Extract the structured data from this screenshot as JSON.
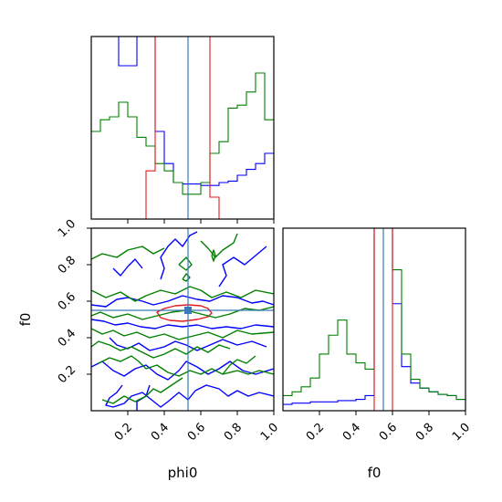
{
  "chart_data": {
    "type": "corner",
    "parameters": [
      "phi0",
      "f0"
    ],
    "truth": {
      "phi0": 0.53,
      "f0": 0.55
    },
    "colors": {
      "truth": "#3a7ab8",
      "red": "#e31a1c",
      "blue": "#0000ff",
      "green": "#008000"
    },
    "ticks": [
      0.2,
      0.4,
      0.6,
      0.8,
      1.0
    ],
    "tick_labels": [
      "0.2",
      "0.4",
      "0.6",
      "0.8",
      "1.0"
    ],
    "hist_phi0": {
      "bin_edges": [
        0,
        0.05,
        0.1,
        0.15,
        0.2,
        0.25,
        0.3,
        0.35,
        0.4,
        0.45,
        0.5,
        0.55,
        0.6,
        0.65,
        0.7,
        0.75,
        0.8,
        0.85,
        0.9,
        0.95,
        1.0
      ],
      "series": [
        {
          "color": "blue",
          "values": [
            1.4,
            1.4,
            1.4,
            1.05,
            1.05,
            1.4,
            1.4,
            0.6,
            0.38,
            0.25,
            0.24,
            0.24,
            0.23,
            0.23,
            0.25,
            0.26,
            0.3,
            0.34,
            0.38,
            0.45
          ]
        },
        {
          "color": "green",
          "values": [
            0.6,
            0.68,
            0.7,
            0.8,
            0.7,
            0.56,
            0.5,
            0.38,
            0.33,
            0.25,
            0.17,
            0.17,
            0.25,
            0.45,
            0.53,
            0.76,
            0.78,
            0.87,
            1.0,
            0.68
          ]
        },
        {
          "color": "red",
          "values": [
            0,
            0,
            0,
            0,
            0,
            0,
            0.33,
            1.4,
            1.4,
            1.4,
            1.4,
            1.4,
            1.4,
            0.15,
            0,
            0,
            0,
            0,
            0,
            0
          ]
        }
      ]
    },
    "hist_f0": {
      "bin_edges": [
        0,
        0.05,
        0.1,
        0.15,
        0.2,
        0.25,
        0.3,
        0.35,
        0.4,
        0.45,
        0.5,
        0.55,
        0.6,
        0.65,
        0.7,
        0.75,
        0.8,
        0.85,
        0.9,
        0.95,
        1.0
      ],
      "series": [
        {
          "color": "blue",
          "values": [
            0.05,
            0.06,
            0.06,
            0.07,
            0.07,
            0.07,
            0.08,
            0.08,
            0.09,
            0.12,
            1.5,
            1.5,
            0.85,
            0.35,
            0.22,
            0.18,
            0.15,
            0.13,
            0.12,
            0.09
          ]
        },
        {
          "color": "green",
          "values": [
            0.12,
            0.15,
            0.19,
            0.26,
            0.45,
            0.6,
            0.72,
            0.45,
            0.38,
            0.33,
            1.5,
            1.5,
            1.12,
            0.45,
            0.25,
            0.18,
            0.15,
            0.13,
            0.12,
            0.09
          ]
        },
        {
          "color": "red",
          "values": [
            0,
            0,
            0,
            0,
            0,
            0,
            0,
            0,
            0,
            0,
            1.5,
            1.5,
            0,
            0,
            0,
            0,
            0,
            0,
            0,
            0
          ]
        }
      ]
    },
    "contours": [
      {
        "color": "red",
        "closed": true,
        "points": [
          [
            0.36,
            0.54
          ],
          [
            0.4,
            0.56
          ],
          [
            0.46,
            0.575
          ],
          [
            0.53,
            0.58
          ],
          [
            0.6,
            0.575
          ],
          [
            0.64,
            0.56
          ],
          [
            0.66,
            0.535
          ],
          [
            0.64,
            0.515
          ],
          [
            0.58,
            0.5
          ],
          [
            0.5,
            0.49
          ],
          [
            0.43,
            0.495
          ],
          [
            0.38,
            0.51
          ]
        ]
      },
      {
        "color": "blue",
        "closed": false,
        "points": [
          [
            0.0,
            0.58
          ],
          [
            0.08,
            0.57
          ],
          [
            0.14,
            0.61
          ],
          [
            0.2,
            0.62
          ],
          [
            0.28,
            0.6
          ],
          [
            0.34,
            0.58
          ],
          [
            0.42,
            0.6
          ],
          [
            0.5,
            0.63
          ],
          [
            0.58,
            0.61
          ],
          [
            0.65,
            0.6
          ],
          [
            0.72,
            0.63
          ],
          [
            0.8,
            0.62
          ],
          [
            0.88,
            0.59
          ],
          [
            0.94,
            0.6
          ],
          [
            1.0,
            0.58
          ]
        ]
      },
      {
        "color": "blue",
        "closed": false,
        "points": [
          [
            0.0,
            0.5
          ],
          [
            0.07,
            0.49
          ],
          [
            0.13,
            0.47
          ],
          [
            0.2,
            0.48
          ],
          [
            0.27,
            0.46
          ],
          [
            0.35,
            0.45
          ],
          [
            0.42,
            0.47
          ],
          [
            0.5,
            0.46
          ],
          [
            0.58,
            0.47
          ],
          [
            0.66,
            0.45
          ],
          [
            0.74,
            0.46
          ],
          [
            0.82,
            0.45
          ],
          [
            0.9,
            0.47
          ],
          [
            1.0,
            0.46
          ]
        ]
      },
      {
        "color": "blue",
        "closed": false,
        "points": [
          [
            0.17,
            0.14
          ],
          [
            0.14,
            0.1
          ],
          [
            0.1,
            0.07
          ],
          [
            0.08,
            0.03
          ],
          [
            0.12,
            0.02
          ],
          [
            0.18,
            0.04
          ],
          [
            0.22,
            0.08
          ],
          [
            0.28,
            0.1
          ],
          [
            0.33,
            0.06
          ],
          [
            0.38,
            0.02
          ],
          [
            0.42,
            0.05
          ],
          [
            0.48,
            0.1
          ],
          [
            0.53,
            0.06
          ],
          [
            0.57,
            0.11
          ],
          [
            0.63,
            0.14
          ],
          [
            0.7,
            0.12
          ],
          [
            0.75,
            0.08
          ],
          [
            0.8,
            0.11
          ],
          [
            0.86,
            0.08
          ],
          [
            0.92,
            0.1
          ],
          [
            1.0,
            0.08
          ]
        ]
      },
      {
        "color": "blue",
        "closed": false,
        "points": [
          [
            0.0,
            0.24
          ],
          [
            0.06,
            0.27
          ],
          [
            0.12,
            0.22
          ],
          [
            0.18,
            0.19
          ],
          [
            0.24,
            0.23
          ],
          [
            0.3,
            0.25
          ],
          [
            0.36,
            0.2
          ],
          [
            0.42,
            0.17
          ],
          [
            0.48,
            0.22
          ],
          [
            0.52,
            0.27
          ],
          [
            0.58,
            0.24
          ],
          [
            0.64,
            0.2
          ],
          [
            0.7,
            0.23
          ],
          [
            0.76,
            0.27
          ],
          [
            0.83,
            0.22
          ],
          [
            0.9,
            0.2
          ],
          [
            1.0,
            0.23
          ]
        ]
      },
      {
        "color": "blue",
        "closed": false,
        "points": [
          [
            0.1,
            0.4
          ],
          [
            0.14,
            0.36
          ],
          [
            0.2,
            0.34
          ],
          [
            0.26,
            0.37
          ],
          [
            0.32,
            0.33
          ],
          [
            0.4,
            0.35
          ],
          [
            0.46,
            0.38
          ],
          [
            0.52,
            0.36
          ],
          [
            0.58,
            0.33
          ],
          [
            0.65,
            0.36
          ],
          [
            0.72,
            0.39
          ],
          [
            0.8,
            0.36
          ],
          [
            0.88,
            0.38
          ],
          [
            0.96,
            0.35
          ]
        ]
      },
      {
        "color": "blue",
        "closed": false,
        "points": [
          [
            0.38,
            0.72
          ],
          [
            0.4,
            0.78
          ],
          [
            0.38,
            0.84
          ],
          [
            0.42,
            0.9
          ],
          [
            0.46,
            0.94
          ],
          [
            0.5,
            0.9
          ],
          [
            0.54,
            0.96
          ],
          [
            0.58,
            0.98
          ]
        ]
      },
      {
        "color": "blue",
        "closed": false,
        "points": [
          [
            0.7,
            0.68
          ],
          [
            0.74,
            0.74
          ],
          [
            0.72,
            0.8
          ],
          [
            0.78,
            0.84
          ],
          [
            0.84,
            0.8
          ],
          [
            0.9,
            0.85
          ],
          [
            0.96,
            0.9
          ]
        ]
      },
      {
        "color": "blue",
        "closed": false,
        "points": [
          [
            0.12,
            0.78
          ],
          [
            0.16,
            0.74
          ],
          [
            0.2,
            0.79
          ],
          [
            0.24,
            0.83
          ],
          [
            0.28,
            0.78
          ]
        ]
      },
      {
        "color": "blue",
        "closed": false,
        "points": [
          [
            0.25,
            0.0
          ],
          [
            0.25,
            0.05
          ],
          [
            0.3,
            0.08
          ],
          [
            0.32,
            0.14
          ]
        ]
      },
      {
        "color": "green",
        "closed": false,
        "points": [
          [
            0.0,
            0.52
          ],
          [
            0.05,
            0.54
          ],
          [
            0.12,
            0.51
          ],
          [
            0.2,
            0.53
          ],
          [
            0.28,
            0.5
          ],
          [
            0.36,
            0.52
          ],
          [
            0.44,
            0.54
          ],
          [
            0.52,
            0.55
          ],
          [
            0.6,
            0.53
          ],
          [
            0.68,
            0.51
          ],
          [
            0.76,
            0.53
          ],
          [
            0.84,
            0.56
          ],
          [
            0.92,
            0.55
          ],
          [
            1.0,
            0.57
          ]
        ]
      },
      {
        "color": "green",
        "closed": false,
        "points": [
          [
            0.0,
            0.66
          ],
          [
            0.08,
            0.62
          ],
          [
            0.16,
            0.65
          ],
          [
            0.24,
            0.6
          ],
          [
            0.3,
            0.63
          ],
          [
            0.38,
            0.66
          ],
          [
            0.46,
            0.64
          ],
          [
            0.54,
            0.68
          ],
          [
            0.6,
            0.66
          ],
          [
            0.66,
            0.62
          ],
          [
            0.74,
            0.65
          ],
          [
            0.82,
            0.62
          ],
          [
            0.9,
            0.66
          ],
          [
            1.0,
            0.64
          ]
        ]
      },
      {
        "color": "green",
        "closed": false,
        "points": [
          [
            0.0,
            0.45
          ],
          [
            0.06,
            0.42
          ],
          [
            0.12,
            0.44
          ],
          [
            0.18,
            0.41
          ],
          [
            0.25,
            0.43
          ],
          [
            0.32,
            0.4
          ],
          [
            0.4,
            0.42
          ],
          [
            0.48,
            0.39
          ],
          [
            0.56,
            0.41
          ],
          [
            0.64,
            0.43
          ],
          [
            0.72,
            0.4
          ],
          [
            0.8,
            0.44
          ],
          [
            0.88,
            0.42
          ],
          [
            1.0,
            0.43
          ]
        ]
      },
      {
        "color": "green",
        "closed": false,
        "points": [
          [
            0.0,
            0.35
          ],
          [
            0.04,
            0.38
          ],
          [
            0.1,
            0.36
          ],
          [
            0.16,
            0.33
          ],
          [
            0.22,
            0.35
          ],
          [
            0.28,
            0.32
          ],
          [
            0.34,
            0.29
          ],
          [
            0.4,
            0.31
          ],
          [
            0.46,
            0.34
          ],
          [
            0.52,
            0.31
          ],
          [
            0.58,
            0.35
          ],
          [
            0.64,
            0.32
          ],
          [
            0.7,
            0.36
          ],
          [
            0.76,
            0.34
          ]
        ]
      },
      {
        "color": "green",
        "closed": false,
        "points": [
          [
            0.04,
            0.26
          ],
          [
            0.1,
            0.29
          ],
          [
            0.16,
            0.27
          ],
          [
            0.22,
            0.3
          ],
          [
            0.26,
            0.27
          ],
          [
            0.3,
            0.23
          ],
          [
            0.36,
            0.25
          ],
          [
            0.42,
            0.21
          ],
          [
            0.48,
            0.19
          ],
          [
            0.54,
            0.22
          ],
          [
            0.6,
            0.2
          ],
          [
            0.66,
            0.23
          ],
          [
            0.72,
            0.2
          ],
          [
            0.8,
            0.22
          ],
          [
            0.86,
            0.2
          ],
          [
            0.92,
            0.22
          ],
          [
            1.0,
            0.2
          ]
        ]
      },
      {
        "color": "green",
        "closed": false,
        "points": [
          [
            0.06,
            0.06
          ],
          [
            0.12,
            0.04
          ],
          [
            0.18,
            0.08
          ],
          [
            0.24,
            0.05
          ],
          [
            0.3,
            0.08
          ],
          [
            0.34,
            0.12
          ],
          [
            0.38,
            0.1
          ],
          [
            0.44,
            0.14
          ],
          [
            0.5,
            0.18
          ]
        ]
      },
      {
        "color": "green",
        "closed": false,
        "points": [
          [
            0.0,
            0.83
          ],
          [
            0.06,
            0.86
          ],
          [
            0.14,
            0.84
          ],
          [
            0.2,
            0.88
          ],
          [
            0.28,
            0.9
          ],
          [
            0.34,
            0.86
          ],
          [
            0.4,
            0.89
          ]
        ]
      },
      {
        "color": "green",
        "closed": false,
        "points": [
          [
            0.6,
            0.93
          ],
          [
            0.64,
            0.89
          ],
          [
            0.68,
            0.84
          ],
          [
            0.72,
            0.88
          ],
          [
            0.78,
            0.92
          ],
          [
            0.8,
            0.97
          ]
        ]
      },
      {
        "color": "green",
        "closed": false,
        "points": [
          [
            0.48,
            0.8
          ],
          [
            0.52,
            0.77
          ],
          [
            0.55,
            0.8
          ],
          [
            0.52,
            0.84
          ],
          [
            0.48,
            0.8
          ]
        ]
      },
      {
        "color": "green",
        "closed": false,
        "points": [
          [
            0.72,
            0.2
          ],
          [
            0.76,
            0.25
          ],
          [
            0.8,
            0.28
          ],
          [
            0.85,
            0.26
          ],
          [
            0.9,
            0.3
          ]
        ]
      },
      {
        "color": "green",
        "closed": false,
        "points": [
          [
            0.66,
            0.85
          ],
          [
            0.67,
            0.82
          ],
          [
            0.68,
            0.85
          ],
          [
            0.67,
            0.88
          ],
          [
            0.66,
            0.85
          ]
        ]
      },
      {
        "color": "green",
        "closed": false,
        "points": [
          [
            0.5,
            0.72
          ],
          [
            0.52,
            0.71
          ],
          [
            0.54,
            0.73
          ],
          [
            0.52,
            0.75
          ],
          [
            0.5,
            0.72
          ]
        ]
      }
    ]
  }
}
